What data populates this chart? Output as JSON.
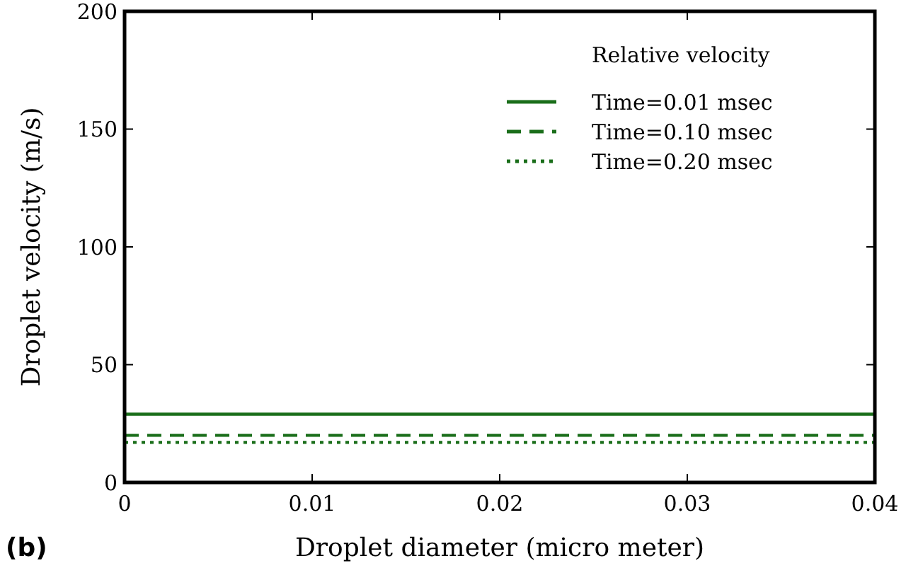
{
  "chart_data": {
    "type": "line",
    "xlabel": "Droplet diameter (micro meter)",
    "ylabel": "Droplet velocity (m/s)",
    "legend_title": "Relative velocity",
    "annotations": [
      "(b)"
    ],
    "x": [
      0,
      0.04
    ],
    "xlim": [
      0,
      0.04
    ],
    "xticks": [
      0,
      0.01,
      0.02,
      0.03,
      0.04
    ],
    "ylim": [
      0,
      200
    ],
    "yticks": [
      0,
      50,
      100,
      150,
      200
    ],
    "grid": false,
    "legend": "top right",
    "marker": "none",
    "series": [
      {
        "name": "Time=0.01 msec",
        "color": "#1a6e1a",
        "values": [
          29,
          29
        ],
        "line_style": "solid"
      },
      {
        "name": "Time=0.10 msec",
        "color": "#1a6e1a",
        "values": [
          20,
          20
        ],
        "line_style": "dashed"
      },
      {
        "name": "Time=0.20 msec",
        "color": "#1a6e1a",
        "values": [
          17,
          17
        ],
        "line_style": "dotted"
      }
    ]
  }
}
